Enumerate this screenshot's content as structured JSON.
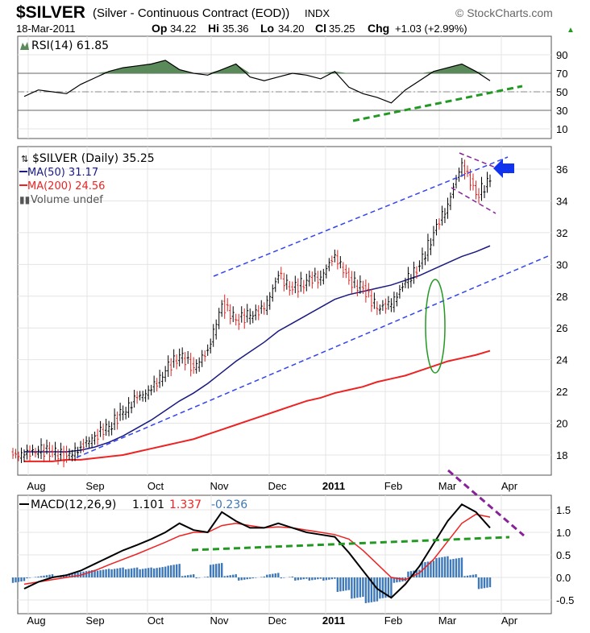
{
  "header": {
    "symbol": "$SILVER",
    "description": "(Silver - Continuous Contract (EOD))",
    "exchange": "INDX",
    "brand": "© StockCharts.com",
    "date": "18-Mar-2011",
    "op_label": "Op",
    "op": "34.22",
    "hi_label": "Hi",
    "hi": "35.36",
    "lo_label": "Lo",
    "lo": "34.20",
    "cl_label": "Cl",
    "cl": "35.25",
    "chg_label": "Chg",
    "chg": "+1.03 (+2.99%)",
    "up_arrow": "▲"
  },
  "colors": {
    "ma50": "#1a1a80",
    "ma200": "#ee2222",
    "rsi_fill": "#5a8a5a",
    "macd_hist": "#3d78b8",
    "channel": "#3344ee",
    "trend_green": "#229922",
    "purple": "#882299"
  },
  "chart_data": [
    {
      "type": "line",
      "title": "RSI(14) 61.85",
      "y_ticks": [
        "90",
        "70",
        "50",
        "30",
        "10"
      ],
      "ylim": [
        0,
        100
      ],
      "values": [
        45,
        52,
        50,
        48,
        58,
        65,
        72,
        76,
        78,
        80,
        84,
        74,
        70,
        68,
        74,
        80,
        66,
        62,
        66,
        70,
        68,
        64,
        72,
        55,
        48,
        44,
        38,
        52,
        62,
        72,
        76,
        80,
        72,
        62
      ]
    },
    {
      "type": "ohlc",
      "title": "$SILVER (Daily) 35.25",
      "legend": [
        "MA(50) 31.17",
        "MA(200) 24.56",
        "Volume undef"
      ],
      "y_ticks": [
        "36",
        "34",
        "32",
        "30",
        "28",
        "26",
        "24",
        "22",
        "20",
        "18"
      ],
      "ylim": [
        17,
        37
      ],
      "x_labels": [
        "Aug",
        "Sep",
        "Oct",
        "Nov",
        "Dec",
        "2011",
        "Feb",
        "Mar",
        "Apr"
      ],
      "weekly_close": [
        18.0,
        18.3,
        18.2,
        17.9,
        18.5,
        19.2,
        19.8,
        20.7,
        21.6,
        22.1,
        23.3,
        24.3,
        23.5,
        24.6,
        27.5,
        26.5,
        26.8,
        27.2,
        29.3,
        28.4,
        29.0,
        29.2,
        30.6,
        29.0,
        28.5,
        27.2,
        27.5,
        28.9,
        29.9,
        32.0,
        33.8,
        36.4,
        34.4,
        35.25
      ],
      "ma50": [
        18.2,
        18.2,
        18.2,
        18.2,
        18.3,
        18.5,
        18.8,
        19.2,
        19.7,
        20.2,
        20.8,
        21.4,
        21.9,
        22.5,
        23.2,
        23.9,
        24.5,
        25.1,
        25.8,
        26.3,
        26.8,
        27.3,
        27.8,
        28.1,
        28.3,
        28.5,
        28.7,
        29.0,
        29.3,
        29.7,
        30.1,
        30.5,
        30.8,
        31.17
      ],
      "ma200": [
        17.6,
        17.6,
        17.6,
        17.7,
        17.7,
        17.8,
        17.9,
        18.0,
        18.2,
        18.4,
        18.6,
        18.8,
        19.0,
        19.3,
        19.6,
        19.9,
        20.2,
        20.5,
        20.8,
        21.1,
        21.4,
        21.6,
        21.9,
        22.1,
        22.3,
        22.6,
        22.8,
        23.0,
        23.3,
        23.6,
        23.9,
        24.1,
        24.3,
        24.56
      ]
    },
    {
      "type": "line",
      "title": "MACD(12,26,9)",
      "macd_value": "1.101",
      "signal_value": "1.337",
      "hist_value": "-0.236",
      "y_ticks": [
        "1.5",
        "1.0",
        "0.5",
        "0.0",
        "-0.5"
      ],
      "ylim": [
        -0.6,
        1.8
      ],
      "x_labels": [
        "Aug",
        "Sep",
        "Oct",
        "Nov",
        "Dec",
        "2011",
        "Feb",
        "Mar",
        "Apr"
      ],
      "macd": [
        -0.25,
        -0.1,
        0.0,
        0.05,
        0.15,
        0.3,
        0.45,
        0.6,
        0.72,
        0.85,
        1.0,
        1.2,
        1.05,
        1.0,
        1.45,
        1.25,
        1.1,
        1.1,
        1.2,
        1.1,
        1.0,
        0.95,
        0.9,
        0.55,
        0.15,
        -0.25,
        -0.45,
        -0.15,
        0.25,
        0.75,
        1.25,
        1.62,
        1.45,
        1.1
      ],
      "signal": [
        -0.15,
        -0.1,
        -0.05,
        0.0,
        0.05,
        0.15,
        0.28,
        0.4,
        0.52,
        0.65,
        0.78,
        0.92,
        1.0,
        1.0,
        1.15,
        1.2,
        1.15,
        1.1,
        1.12,
        1.1,
        1.05,
        1.0,
        0.95,
        0.85,
        0.6,
        0.3,
        0.0,
        -0.05,
        0.1,
        0.4,
        0.8,
        1.2,
        1.4,
        1.337
      ]
    }
  ]
}
